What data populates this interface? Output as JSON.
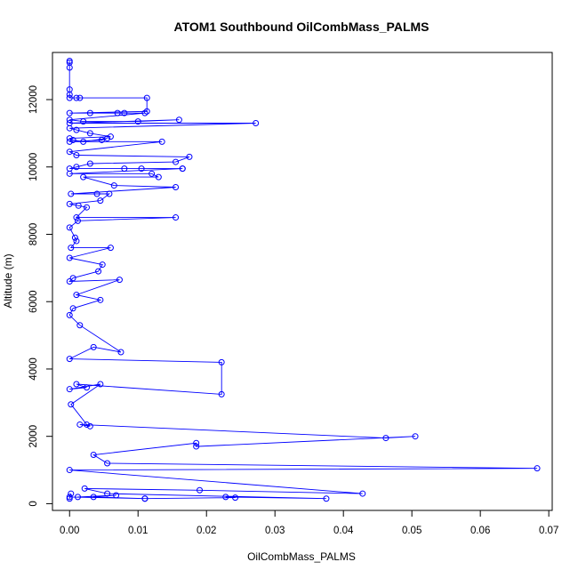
{
  "chart_data": {
    "type": "line",
    "title": "ATOM1 Southbound OilCombMass_PALMS",
    "xlabel": "OilCombMass_PALMS",
    "ylabel": "Altitude (m)",
    "xlim": [
      -0.0025,
      0.0705
    ],
    "ylim": [
      -200,
      13400
    ],
    "xticks": [
      0.0,
      0.01,
      0.02,
      0.03,
      0.04,
      0.05,
      0.06,
      0.07
    ],
    "xtick_labels": [
      "0.00",
      "0.01",
      "0.02",
      "0.03",
      "0.04",
      "0.05",
      "0.06",
      "0.07"
    ],
    "yticks": [
      0,
      2000,
      4000,
      6000,
      8000,
      10000,
      12000
    ],
    "ytick_labels": [
      "0",
      "2000",
      "4000",
      "6000",
      "8000",
      "10000",
      "12000"
    ],
    "grid": false,
    "color": "#0000ff",
    "marker": "open-circle",
    "x": [
      0,
      0,
      0,
      0,
      0,
      0,
      0.001,
      0.0015,
      0.0113,
      0.0113,
      0,
      0.003,
      0.007,
      0.008,
      0.011,
      0,
      0.002,
      0.01,
      0.016,
      0,
      0.0272,
      0,
      0.001,
      0.003,
      0.006,
      0,
      0.0005,
      0.002,
      0.0055,
      0.0047,
      0,
      0.0135,
      0,
      0.001,
      0.0175,
      0.0155,
      0.003,
      0.001,
      0,
      0.008,
      0.0105,
      0.0165,
      0.0165,
      0,
      0.012,
      0.013,
      0.002,
      0.0065,
      0.0155,
      0.0002,
      0.004,
      0.0058,
      0.0045,
      0,
      0.0013,
      0.0025,
      0.001,
      0.0155,
      0.0012,
      0,
      0.0008,
      0.001,
      0.0002,
      0.006,
      0,
      0.0048,
      0.0042,
      0.0005,
      0,
      0.0073,
      0.001,
      0.0045,
      0.0005,
      0,
      0.0015,
      0.0075,
      0.0035,
      0,
      0.0222,
      0.0222,
      0.001,
      0.0025,
      0,
      0.0045,
      0.0002,
      0.0025,
      0.003,
      0.0015,
      0.0462,
      0.0505,
      0.0185,
      0.0185,
      0.0035,
      0.0055,
      0.0683,
      0,
      0.0428,
      0.019,
      0.0022,
      0.0055,
      0.0375,
      0.0228,
      0.0242,
      0.011,
      0.0012,
      0.0068,
      0.0035,
      0.011,
      0,
      0.0002,
      0
    ],
    "y": [
      13150,
      13100,
      12950,
      12300,
      12150,
      12050,
      12050,
      12050,
      12050,
      11650,
      11600,
      11600,
      11600,
      11600,
      11600,
      11400,
      11350,
      11350,
      11400,
      11300,
      11300,
      11150,
      11100,
      11000,
      10900,
      10850,
      10800,
      10750,
      10850,
      10800,
      10750,
      10750,
      10450,
      10350,
      10300,
      10150,
      10100,
      10000,
      9950,
      9950,
      9950,
      9950,
      9950,
      9800,
      9800,
      9700,
      9700,
      9450,
      9400,
      9200,
      9200,
      9200,
      9000,
      8900,
      8850,
      8800,
      8500,
      8500,
      8400,
      8200,
      7900,
      7800,
      7600,
      7600,
      7300,
      7100,
      6900,
      6700,
      6600,
      6650,
      6200,
      6050,
      5800,
      5600,
      5300,
      4500,
      4650,
      4300,
      4200,
      3250,
      3550,
      3450,
      3400,
      3550,
      2950,
      2350,
      2300,
      2350,
      1950,
      2000,
      1700,
      1800,
      1450,
      1200,
      1050,
      1000,
      300,
      400,
      450,
      300,
      150,
      200,
      180,
      150,
      200,
      250,
      200,
      150,
      200,
      300,
      150
    ]
  }
}
